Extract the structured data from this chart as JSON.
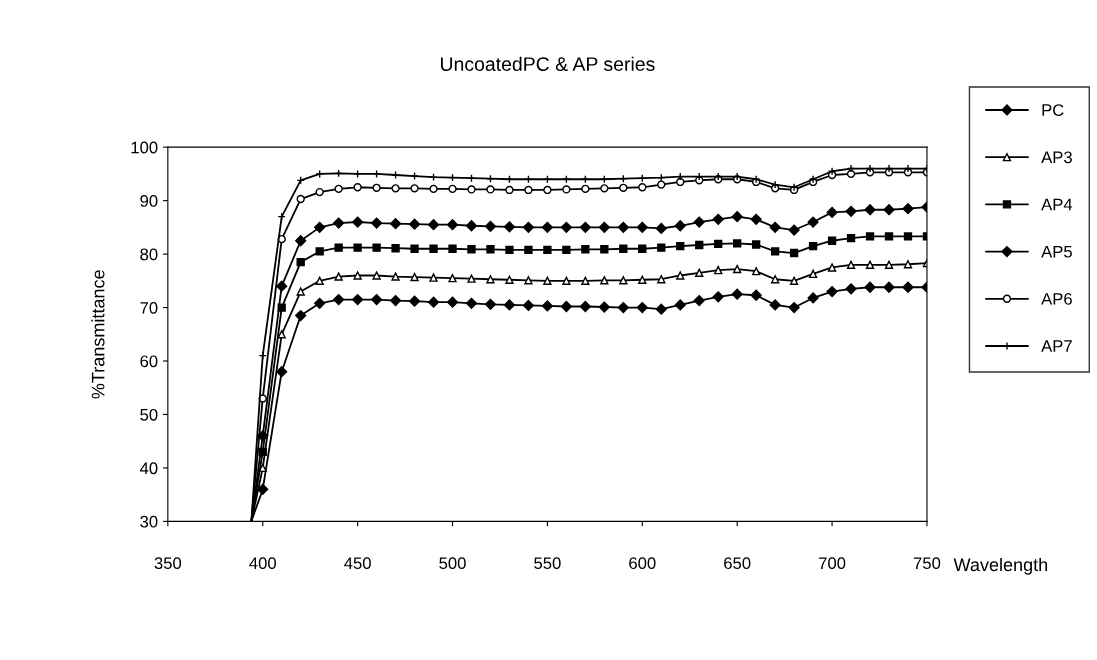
{
  "chart_data": {
    "type": "line",
    "title": "UncoatedPC & AP series",
    "xlabel": "Wavelength",
    "ylabel": "%Transmittance",
    "x": [
      394,
      400,
      410,
      420,
      430,
      440,
      450,
      460,
      470,
      480,
      490,
      500,
      510,
      520,
      530,
      540,
      550,
      560,
      570,
      580,
      590,
      600,
      610,
      620,
      630,
      640,
      650,
      660,
      670,
      680,
      690,
      700,
      710,
      720,
      730,
      740,
      750
    ],
    "xlim": [
      350,
      750
    ],
    "xticks": [
      350,
      400,
      450,
      500,
      550,
      600,
      650,
      700,
      750
    ],
    "ylim": [
      30,
      100
    ],
    "yticks": [
      30,
      40,
      50,
      60,
      70,
      80,
      90,
      100
    ],
    "grid": false,
    "legend": "right",
    "line_style": "solid",
    "series": [
      {
        "name": "PC",
        "color": "#000000",
        "marker": "diamond",
        "values": [
          30,
          36,
          58,
          68.5,
          70.8,
          71.5,
          71.5,
          71.5,
          71.3,
          71.2,
          71,
          71,
          70.8,
          70.6,
          70.5,
          70.4,
          70.3,
          70.2,
          70.2,
          70.1,
          70,
          70,
          69.7,
          70.5,
          71.3,
          72,
          72.5,
          72.3,
          70.5,
          70,
          71.8,
          73,
          73.5,
          73.8,
          73.8,
          73.8,
          73.8
        ]
      },
      {
        "name": "AP3",
        "color": "#000000",
        "marker": "triangle",
        "values": [
          30,
          40,
          65,
          73,
          75,
          75.8,
          76,
          76,
          75.8,
          75.7,
          75.6,
          75.5,
          75.4,
          75.3,
          75.2,
          75.1,
          75,
          75,
          75,
          75.1,
          75.1,
          75.2,
          75.3,
          76,
          76.5,
          77,
          77.2,
          76.8,
          75.3,
          75,
          76.3,
          77.5,
          78,
          78,
          78,
          78.1,
          78.3
        ]
      },
      {
        "name": "AP4",
        "color": "#000000",
        "marker": "square",
        "values": [
          30,
          43,
          70,
          78.5,
          80.5,
          81.2,
          81.2,
          81.2,
          81.1,
          81,
          81,
          81,
          80.9,
          80.9,
          80.8,
          80.8,
          80.8,
          80.8,
          80.9,
          80.9,
          81,
          81,
          81.2,
          81.5,
          81.7,
          81.9,
          82,
          81.8,
          80.5,
          80.2,
          81.5,
          82.5,
          83,
          83.3,
          83.3,
          83.3,
          83.3
        ]
      },
      {
        "name": "AP5",
        "color": "#000000",
        "marker": "diamond",
        "values": [
          30,
          46,
          74,
          82.5,
          85,
          85.8,
          86,
          85.8,
          85.7,
          85.6,
          85.5,
          85.5,
          85.3,
          85.2,
          85.1,
          85,
          85,
          85,
          85,
          85,
          85,
          85,
          84.8,
          85.3,
          86,
          86.5,
          87,
          86.5,
          85,
          84.5,
          86,
          87.8,
          88,
          88.3,
          88.3,
          88.5,
          88.8
        ]
      },
      {
        "name": "AP6",
        "color": "#000000",
        "marker": "circle",
        "values": [
          30,
          53,
          82.8,
          90.3,
          91.6,
          92.2,
          92.5,
          92.4,
          92.3,
          92.3,
          92.2,
          92.2,
          92.1,
          92.1,
          92,
          92,
          92,
          92.1,
          92.2,
          92.3,
          92.4,
          92.5,
          93,
          93.5,
          93.8,
          94,
          94,
          93.5,
          92.3,
          92,
          93.5,
          94.8,
          95,
          95.3,
          95.3,
          95.3,
          95.3
        ]
      },
      {
        "name": "AP7",
        "color": "#000000",
        "marker": "cross",
        "values": [
          30,
          61,
          87,
          93.8,
          95,
          95.1,
          95,
          95,
          94.8,
          94.6,
          94.4,
          94.3,
          94.2,
          94.1,
          94,
          94,
          94,
          94,
          94,
          94,
          94.1,
          94.2,
          94.3,
          94.5,
          94.5,
          94.5,
          94.5,
          94,
          93,
          92.5,
          94,
          95.5,
          96,
          96,
          96,
          96,
          96
        ]
      }
    ]
  }
}
